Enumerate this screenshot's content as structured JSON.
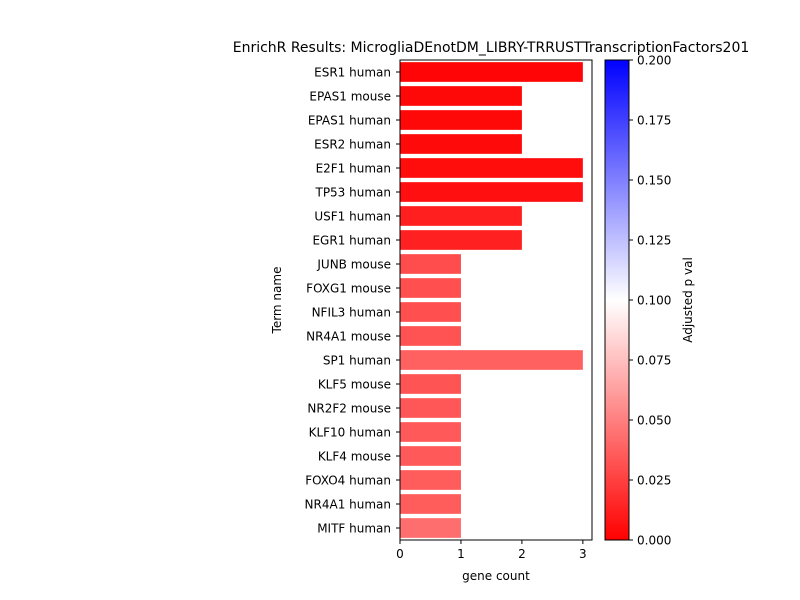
{
  "chart_data": {
    "type": "bar",
    "orientation": "horizontal",
    "title": "EnrichR Results: MicrogliaDEnotDM_LIBRY-TRRUSTTranscriptionFactors201",
    "xlabel": "gene count",
    "ylabel": "Term name",
    "xlim": [
      0,
      3.15
    ],
    "xticks": [
      "0",
      "1",
      "2",
      "3"
    ],
    "categories": [
      "ESR1 human",
      "EPAS1 mouse",
      "EPAS1 human",
      "ESR2 human",
      "E2F1 human",
      "TP53 human",
      "USF1 human",
      "EGR1 human",
      "JUNB mouse",
      "FOXG1 mouse",
      "NFIL3 human",
      "NR4A1 mouse",
      "SP1 human",
      "KLF5 mouse",
      "NR2F2 mouse",
      "KLF10 human",
      "KLF4 mouse",
      "FOXO4 human",
      "NR4A1 human",
      "MITF human"
    ],
    "values": [
      3,
      2,
      2,
      2,
      3,
      3,
      2,
      2,
      1,
      1,
      1,
      1,
      3,
      1,
      1,
      1,
      1,
      1,
      1,
      1
    ],
    "adjusted_p": [
      0.002,
      0.003,
      0.003,
      0.004,
      0.005,
      0.006,
      0.012,
      0.013,
      0.03,
      0.031,
      0.031,
      0.032,
      0.038,
      0.033,
      0.034,
      0.035,
      0.035,
      0.036,
      0.036,
      0.043
    ],
    "colorbar": {
      "label": "Adjusted p val",
      "range": [
        0,
        0.2
      ],
      "ticks": [
        "0.000",
        "0.025",
        "0.050",
        "0.075",
        "0.100",
        "0.125",
        "0.150",
        "0.175",
        "0.200"
      ],
      "colors": [
        "#ff0000",
        "#ffffff",
        "#0000ff"
      ]
    },
    "grid": false,
    "legend": "none"
  }
}
